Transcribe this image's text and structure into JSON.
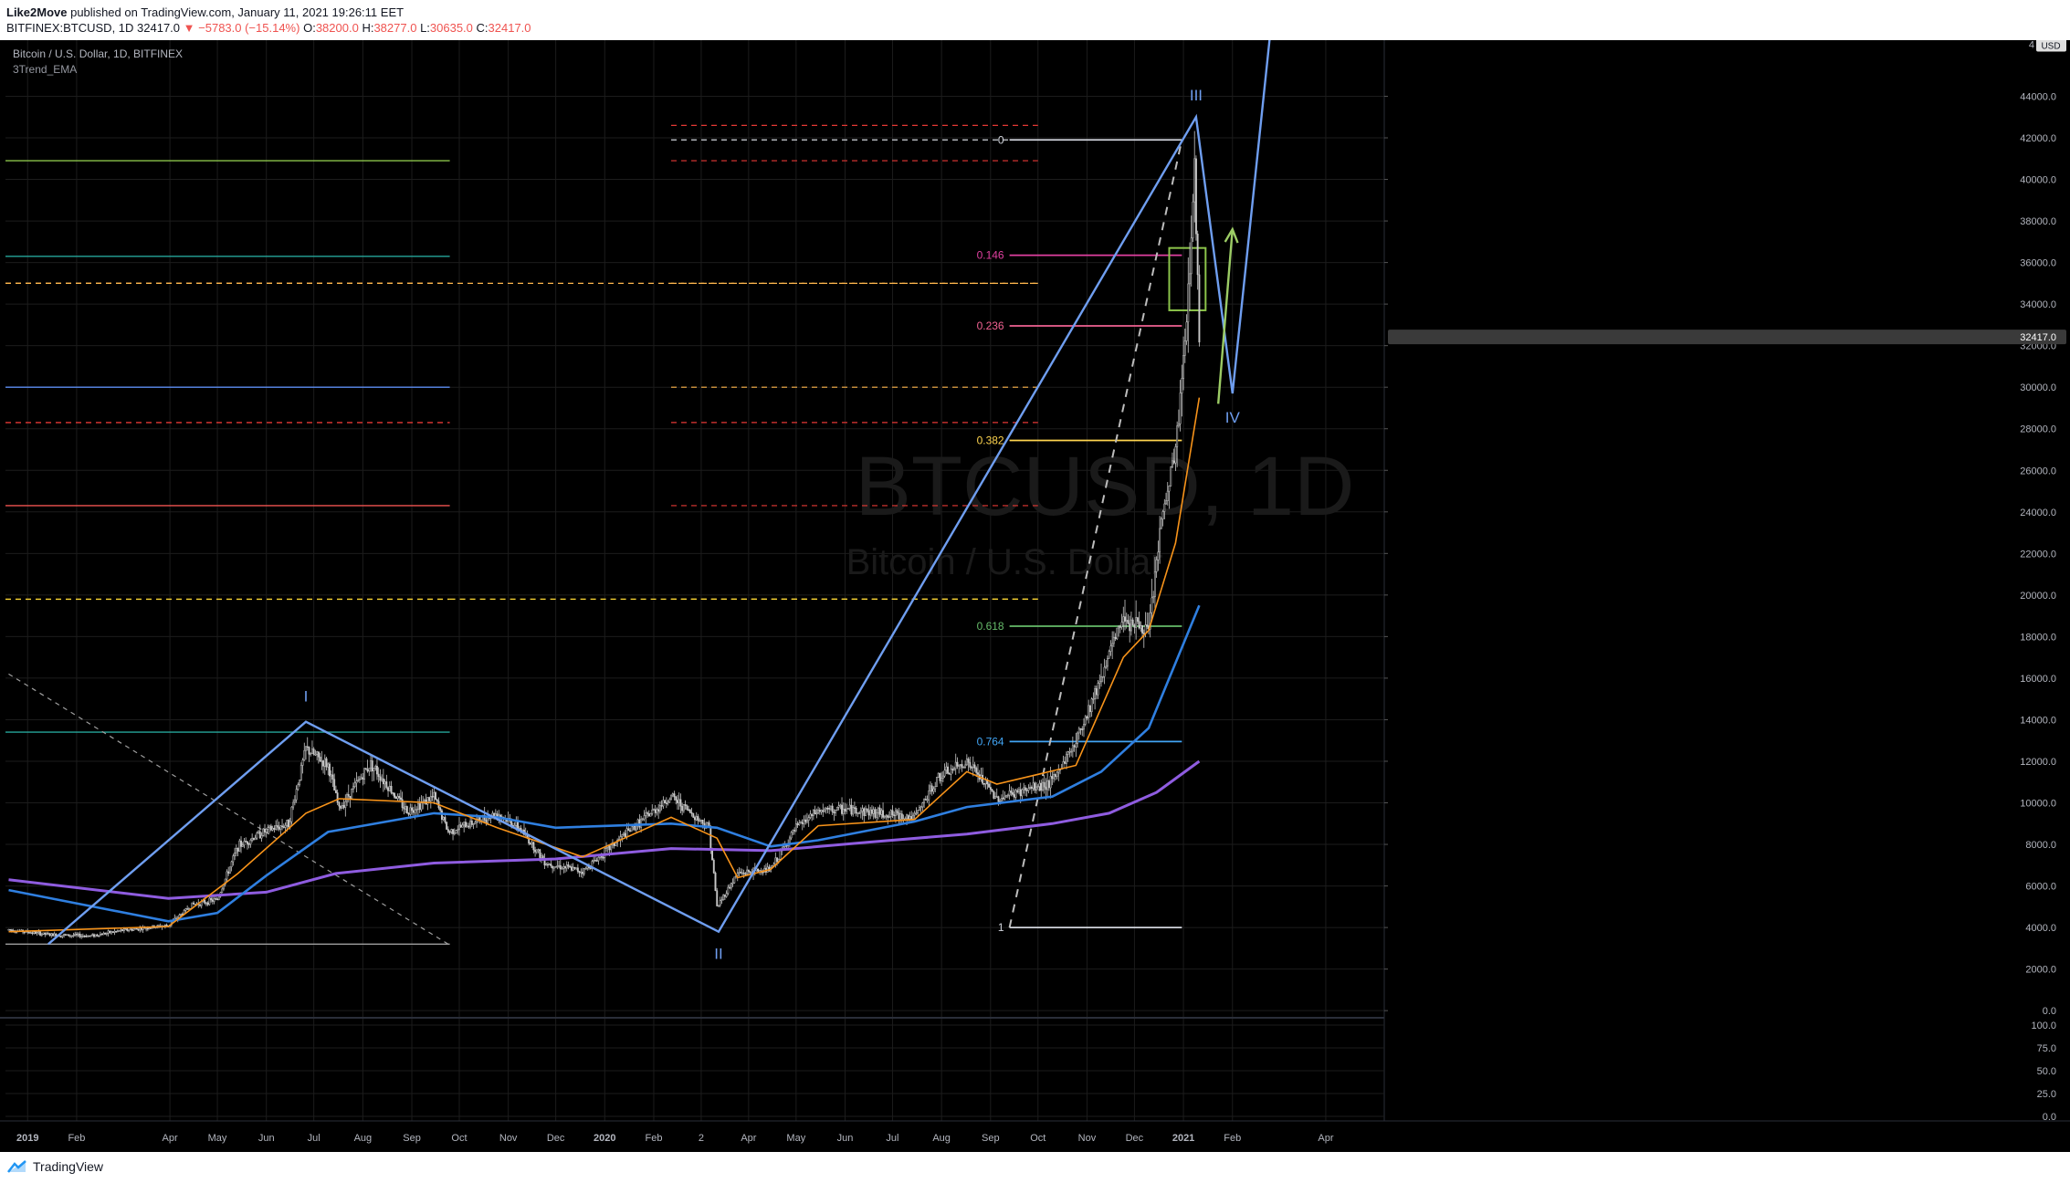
{
  "header": {
    "author": "Like2Move",
    "published_text": " published on TradingView.com, January 11, 2021 19:26:11 EET",
    "symbol_line_prefix": "BITFINEX:BTCUSD, 1D  32417.0",
    "change": "−5783.0 (−15.14%)",
    "ohlc": {
      "o_label": "O:",
      "o": "38200.0",
      "h_label": "H:",
      "h": "38277.0",
      "l_label": "L:",
      "l": "30635.0",
      "c_label": "C:",
      "c": "32417.0"
    }
  },
  "legend": {
    "title": "Bitcoin / U.S. Dollar, 1D, BITFINEX",
    "indicator": "3Trend_EMA"
  },
  "watermark": {
    "symbol": "BTCUSD, 1D",
    "name": "Bitcoin / U.S. Dollar"
  },
  "footer": {
    "brand": "TradingView"
  },
  "colors": {
    "background": "#000000",
    "grid": "#1c1c1c",
    "wave": "#6f9ef0",
    "ema_orange": "#f7931a",
    "ema_blue": "#2f7fe0",
    "ema_purple": "#8f5ce0",
    "candle": "#c8c8c8",
    "axis_text": "#b2b5be",
    "up": "#26a69a",
    "down": "#ef5350"
  },
  "chart_data": {
    "type": "candlestick",
    "y_axis": {
      "currency_label": "USD",
      "ticks": [
        0,
        2000,
        4000,
        6000,
        8000,
        10000,
        12000,
        14000,
        16000,
        18000,
        20000,
        22000,
        24000,
        26000,
        28000,
        30000,
        32000,
        34000,
        36000,
        38000,
        40000,
        42000,
        44000
      ],
      "tick_labels": [
        "0.0",
        "2000.0",
        "4000.0",
        "6000.0",
        "8000.0",
        "10000.0",
        "12000.0",
        "14000.0",
        "16000.0",
        "18000.0",
        "20000.0",
        "22000.0",
        "24000.0",
        "26000.0",
        "28000.0",
        "30000.0",
        "32000.0",
        "34000.0",
        "36000.0",
        "38000.0",
        "40000.0",
        "42000.0",
        "44000.0"
      ],
      "range": [
        -300,
        46700
      ],
      "last_price_label": "32417.0",
      "last_price": 32417
    },
    "x_axis": {
      "labels": [
        {
          "label": "2019",
          "date": "2019-01-01"
        },
        {
          "label": "Feb",
          "date": "2019-02-01"
        },
        {
          "label": "Apr",
          "date": "2019-04-01"
        },
        {
          "label": "May",
          "date": "2019-05-01"
        },
        {
          "label": "Jun",
          "date": "2019-06-01"
        },
        {
          "label": "Jul",
          "date": "2019-07-01"
        },
        {
          "label": "Aug",
          "date": "2019-08-01"
        },
        {
          "label": "Sep",
          "date": "2019-09-01"
        },
        {
          "label": "Oct",
          "date": "2019-10-01"
        },
        {
          "label": "Nov",
          "date": "2019-11-01"
        },
        {
          "label": "Dec",
          "date": "2019-12-01"
        },
        {
          "label": "2020",
          "date": "2020-01-01"
        },
        {
          "label": "Feb",
          "date": "2020-02-01"
        },
        {
          "label": "2",
          "date": "2020-03-02"
        },
        {
          "label": "Apr",
          "date": "2020-04-01"
        },
        {
          "label": "May",
          "date": "2020-05-01"
        },
        {
          "label": "Jun",
          "date": "2020-06-01"
        },
        {
          "label": "Jul",
          "date": "2020-07-01"
        },
        {
          "label": "Aug",
          "date": "2020-08-01"
        },
        {
          "label": "Sep",
          "date": "2020-09-01"
        },
        {
          "label": "Oct",
          "date": "2020-10-01"
        },
        {
          "label": "Nov",
          "date": "2020-11-01"
        },
        {
          "label": "Dec",
          "date": "2020-12-01"
        },
        {
          "label": "2021",
          "date": "2021-01-01"
        },
        {
          "label": "Feb",
          "date": "2021-02-01"
        },
        {
          "label": "Apr",
          "date": "2021-04-01"
        }
      ],
      "range": [
        "2018-12-18",
        "2021-05-08"
      ]
    },
    "price_path": [
      [
        "2018-12-20",
        3900
      ],
      [
        "2019-01-15",
        3650
      ],
      [
        "2019-02-10",
        3600
      ],
      [
        "2019-03-01",
        3850
      ],
      [
        "2019-03-31",
        4100
      ],
      [
        "2019-04-15",
        5100
      ],
      [
        "2019-05-01",
        5350
      ],
      [
        "2019-05-14",
        7900
      ],
      [
        "2019-05-30",
        8600
      ],
      [
        "2019-06-15",
        9000
      ],
      [
        "2019-06-26",
        12600
      ],
      [
        "2019-07-10",
        11800
      ],
      [
        "2019-07-17",
        9700
      ],
      [
        "2019-08-06",
        11900
      ],
      [
        "2019-08-29",
        9600
      ],
      [
        "2019-09-15",
        10300
      ],
      [
        "2019-09-24",
        8600
      ],
      [
        "2019-10-25",
        9500
      ],
      [
        "2019-11-08",
        8800
      ],
      [
        "2019-11-25",
        7100
      ],
      [
        "2019-12-18",
        6700
      ],
      [
        "2020-01-14",
        8500
      ],
      [
        "2020-02-12",
        10300
      ],
      [
        "2020-03-07",
        8800
      ],
      [
        "2020-03-12",
        5000
      ],
      [
        "2020-03-25",
        6600
      ],
      [
        "2020-04-15",
        6800
      ],
      [
        "2020-05-01",
        8800
      ],
      [
        "2020-05-15",
        9600
      ],
      [
        "2020-06-01",
        9700
      ],
      [
        "2020-07-15",
        9300
      ],
      [
        "2020-07-30",
        11200
      ],
      [
        "2020-08-17",
        12000
      ],
      [
        "2020-09-05",
        10200
      ],
      [
        "2020-10-10",
        11000
      ],
      [
        "2020-10-25",
        13000
      ],
      [
        "2020-11-07",
        15500
      ],
      [
        "2020-11-24",
        19000
      ],
      [
        "2020-12-10",
        18200
      ],
      [
        "2020-12-17",
        23000
      ],
      [
        "2020-12-27",
        27000
      ],
      [
        "2021-01-02",
        32000
      ],
      [
        "2021-01-08",
        40500
      ],
      [
        "2021-01-11",
        32417
      ]
    ],
    "ema_fast": [
      [
        "2018-12-20",
        3800
      ],
      [
        "2019-03-31",
        4050
      ],
      [
        "2019-05-14",
        6600
      ],
      [
        "2019-06-26",
        9500
      ],
      [
        "2019-07-17",
        10200
      ],
      [
        "2019-09-15",
        10000
      ],
      [
        "2019-10-25",
        8800
      ],
      [
        "2019-12-18",
        7400
      ],
      [
        "2020-02-12",
        9300
      ],
      [
        "2020-03-12",
        8300
      ],
      [
        "2020-03-25",
        6400
      ],
      [
        "2020-04-15",
        6800
      ],
      [
        "2020-05-15",
        8900
      ],
      [
        "2020-07-15",
        9200
      ],
      [
        "2020-08-17",
        11500
      ],
      [
        "2020-09-05",
        10900
      ],
      [
        "2020-10-25",
        11800
      ],
      [
        "2020-11-24",
        17000
      ],
      [
        "2020-12-10",
        18300
      ],
      [
        "2020-12-27",
        22500
      ],
      [
        "2021-01-11",
        29500
      ]
    ],
    "ema_mid": [
      [
        "2018-12-20",
        5800
      ],
      [
        "2019-03-31",
        4300
      ],
      [
        "2019-05-01",
        4700
      ],
      [
        "2019-06-01",
        6500
      ],
      [
        "2019-07-10",
        8600
      ],
      [
        "2019-09-15",
        9500
      ],
      [
        "2019-10-25",
        9300
      ],
      [
        "2019-12-01",
        8800
      ],
      [
        "2020-02-12",
        9000
      ],
      [
        "2020-03-12",
        8800
      ],
      [
        "2020-04-15",
        7900
      ],
      [
        "2020-05-15",
        8200
      ],
      [
        "2020-07-15",
        9100
      ],
      [
        "2020-08-17",
        9800
      ],
      [
        "2020-10-10",
        10300
      ],
      [
        "2020-11-10",
        11500
      ],
      [
        "2020-12-10",
        13600
      ],
      [
        "2021-01-11",
        19500
      ]
    ],
    "ema_slow": [
      [
        "2018-12-20",
        6300
      ],
      [
        "2019-03-31",
        5400
      ],
      [
        "2019-06-01",
        5700
      ],
      [
        "2019-07-15",
        6600
      ],
      [
        "2019-09-15",
        7100
      ],
      [
        "2019-12-01",
        7300
      ],
      [
        "2020-02-12",
        7800
      ],
      [
        "2020-04-15",
        7700
      ],
      [
        "2020-06-15",
        8100
      ],
      [
        "2020-08-17",
        8500
      ],
      [
        "2020-10-10",
        9000
      ],
      [
        "2020-11-15",
        9500
      ],
      [
        "2020-12-15",
        10500
      ],
      [
        "2021-01-11",
        12000
      ]
    ],
    "elliott_wave": [
      {
        "label": "",
        "date": "2019-01-14",
        "price": 3200
      },
      {
        "label": "I",
        "date": "2019-06-26",
        "price": 13900
      },
      {
        "label": "II",
        "date": "2020-03-13",
        "price": 3800
      },
      {
        "label": "III",
        "date": "2021-01-09",
        "price": 43000
      },
      {
        "label": "IV",
        "date": "2021-02-01",
        "price": 29700
      },
      {
        "label": "",
        "date": "2021-03-01",
        "price": 50000
      }
    ],
    "wave_labels": [
      "I",
      "II",
      "III",
      "IV"
    ],
    "projection_arrow": {
      "from": [
        "2021-01-23",
        29200
      ],
      "to": [
        "2021-02-01",
        37600
      ]
    },
    "fibonacci": {
      "anchor_high": {
        "date": "2020-12-31",
        "price": 41900
      },
      "anchor_low": {
        "date": "2020-09-13",
        "price": 4000
      },
      "levels": [
        {
          "ratio": "0",
          "price": 41900,
          "color": "#d1d4dc"
        },
        {
          "ratio": "0.146",
          "price": 36350,
          "color": "#e040a0"
        },
        {
          "ratio": "0.236",
          "price": 32950,
          "color": "#f06292"
        },
        {
          "ratio": "0.382",
          "price": 27440,
          "color": "#ffd54f"
        },
        {
          "ratio": "0.618",
          "price": 18500,
          "color": "#66bb6a"
        },
        {
          "ratio": "0.764",
          "price": 12950,
          "color": "#42a5f5"
        },
        {
          "ratio": "1",
          "price": 4000,
          "color": "#d1d4dc"
        }
      ]
    },
    "target_box": {
      "from": [
        "2020-12-23",
        34600
      ],
      "to": [
        "2021-01-15",
        35800
      ],
      "color": "#8bc34a"
    },
    "horizontal_levels_left": [
      {
        "price": 40900,
        "color": "#8bc34a",
        "style": "solid"
      },
      {
        "price": 36300,
        "color": "#26a69a",
        "style": "solid"
      },
      {
        "price": 35000,
        "color": "#ffb74d",
        "style": "dashed"
      },
      {
        "price": 30000,
        "color": "#5c8cf0",
        "style": "solid"
      },
      {
        "price": 28300,
        "color": "#e53935",
        "style": "dashed"
      },
      {
        "price": 24300,
        "color": "#ef5350",
        "style": "solid"
      },
      {
        "price": 19800,
        "color": "#fdd835",
        "style": "dashed"
      },
      {
        "price": 13400,
        "color": "#26a69a",
        "style": "solid"
      },
      {
        "price": 3200,
        "color": "#9e9e9e",
        "style": "solid"
      }
    ],
    "horizontal_levels_right": [
      {
        "price": 42600,
        "color": "#e53935",
        "style": "dashed"
      },
      {
        "price": 41900,
        "color": "#d1d4dc",
        "style": "dashed"
      },
      {
        "price": 40900,
        "color": "#e53935",
        "style": "dashed"
      },
      {
        "price": 35000,
        "color": "#ffb74d",
        "style": "dashed"
      },
      {
        "price": 30000,
        "color": "#ffb74d",
        "style": "dashed"
      },
      {
        "price": 24300,
        "color": "#e53935",
        "style": "dashed"
      },
      {
        "price": 19800,
        "color": "#fdd835",
        "style": "dashed"
      }
    ],
    "dashed_trendline": {
      "from": [
        "2018-12-20",
        16200
      ],
      "to": [
        "2019-09-24",
        3200
      ]
    },
    "oscillator": {
      "ticks": [
        0,
        25,
        50,
        75,
        100
      ],
      "tick_labels": [
        "0.0",
        "25.0",
        "50.0",
        "75.0",
        "100.0"
      ],
      "range": [
        -5,
        107
      ]
    }
  }
}
